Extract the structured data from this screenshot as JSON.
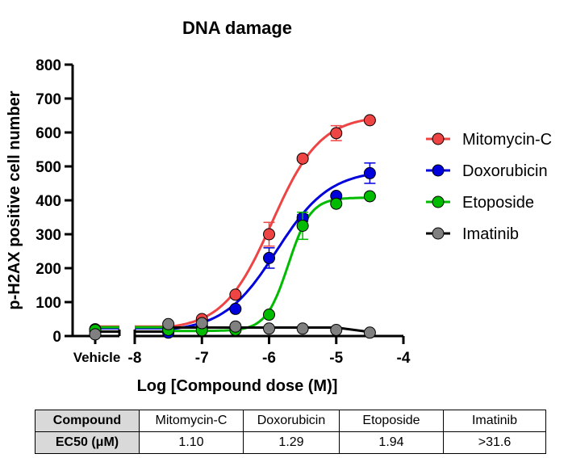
{
  "chart_data": {
    "type": "scatter",
    "title": "DNA damage",
    "xlabel": "Log [Compound dose (M)]",
    "ylabel": "p-H2AX positive cell number",
    "xlim": [
      -8,
      -4
    ],
    "ylim": [
      0,
      800
    ],
    "xticks": [
      "-8",
      "-7",
      "-6",
      "-5",
      "-4"
    ],
    "yticks": [
      "0",
      "100",
      "200",
      "300",
      "400",
      "500",
      "600",
      "700",
      "800"
    ],
    "vehicle_label": "Vehicle",
    "legend_position": "right",
    "x": [
      -7.5,
      -7,
      -6.5,
      -6,
      -5.5,
      -5,
      -4.5
    ],
    "series": [
      {
        "name": "Mitomycin-C",
        "color": "#ee4444",
        "vehicle": 20,
        "values": [
          22,
          50,
          122,
          300,
          523,
          598,
          636
        ],
        "errors": [
          0,
          0,
          0,
          35,
          0,
          22,
          0
        ],
        "ec50": 1.1,
        "top": 650,
        "bottom": 18,
        "hill": 1.2
      },
      {
        "name": "Doxorubicin",
        "color": "#0000dd",
        "vehicle": 15,
        "values": [
          10,
          30,
          80,
          230,
          348,
          413,
          480
        ],
        "errors": [
          0,
          0,
          0,
          30,
          10,
          0,
          30
        ],
        "ec50": 1.29,
        "top": 490,
        "bottom": 12,
        "hill": 1.1
      },
      {
        "name": "Etoposide",
        "color": "#00bb00",
        "vehicle": 18,
        "values": [
          18,
          17,
          18,
          63,
          325,
          390,
          412
        ],
        "errors": [
          0,
          0,
          0,
          0,
          40,
          0,
          0
        ],
        "ec50": 1.94,
        "top": 408,
        "bottom": 15,
        "hill": 2.6
      },
      {
        "name": "Imatinib",
        "color": "#808080",
        "vehicle": 5,
        "values": [
          35,
          38,
          28,
          22,
          22,
          18,
          10
        ],
        "errors": [
          0,
          0,
          0,
          0,
          0,
          0,
          0
        ],
        "flat": [
          25,
          12
        ]
      }
    ]
  },
  "table": {
    "header_label": "Compound",
    "row_label": "EC50 (μM)",
    "compounds": [
      "Mitomycin-C",
      "Doxorubicin",
      "Etoposide",
      "Imatinib"
    ],
    "ec50": [
      "1.10",
      "1.29",
      "1.94",
      ">31.6"
    ]
  }
}
